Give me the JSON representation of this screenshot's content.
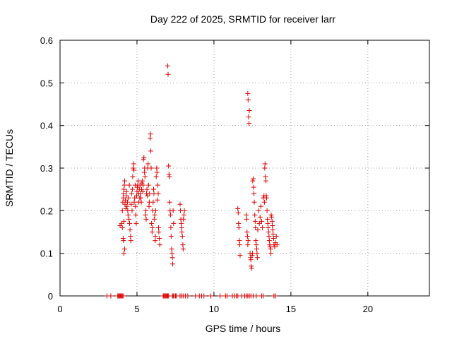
{
  "chart_data": {
    "type": "scatter",
    "title": "Day 222 of 2025, SRMTID for receiver larr",
    "xlabel": "GPS time / hours",
    "ylabel": "SRMTID / TECUs",
    "xlim": [
      0,
      24
    ],
    "ylim": [
      0,
      0.6
    ],
    "xticks": [
      0,
      5,
      10,
      15,
      20
    ],
    "yticks": [
      0,
      0.1,
      0.2,
      0.3,
      0.4,
      0.5,
      0.6
    ],
    "xtick_labels": [
      "0",
      "5",
      "10",
      "15",
      "20"
    ],
    "ytick_labels": [
      "0",
      "0.1",
      "0.2",
      "0.3",
      "0.4",
      "0.5",
      "0.6"
    ],
    "grid": true,
    "marker": "+",
    "color": "#e00000",
    "series": [
      {
        "name": "SRMTID",
        "points": [
          [
            3.05,
            0
          ],
          [
            3.3,
            0
          ],
          [
            3.75,
            0
          ],
          [
            3.8,
            0
          ],
          [
            3.85,
            0
          ],
          [
            3.9,
            0
          ],
          [
            3.95,
            0
          ],
          [
            4.0,
            0
          ],
          [
            4.05,
            0
          ],
          [
            4.1,
            0
          ],
          [
            6.7,
            0
          ],
          [
            6.75,
            0
          ],
          [
            6.8,
            0
          ],
          [
            6.85,
            0
          ],
          [
            6.9,
            0
          ],
          [
            6.95,
            0
          ],
          [
            7.0,
            0
          ],
          [
            7.05,
            0
          ],
          [
            7.3,
            0
          ],
          [
            7.35,
            0
          ],
          [
            7.4,
            0
          ],
          [
            7.5,
            0
          ],
          [
            7.55,
            0
          ],
          [
            7.8,
            0
          ],
          [
            7.9,
            0
          ],
          [
            8.0,
            0
          ],
          [
            8.15,
            0
          ],
          [
            8.3,
            0
          ],
          [
            8.8,
            0
          ],
          [
            9.05,
            0
          ],
          [
            9.2,
            0
          ],
          [
            9.35,
            0
          ],
          [
            9.8,
            0
          ],
          [
            10.4,
            0
          ],
          [
            10.75,
            0
          ],
          [
            10.85,
            0
          ],
          [
            11.2,
            0
          ],
          [
            11.35,
            0
          ],
          [
            11.45,
            0
          ],
          [
            11.55,
            0
          ],
          [
            11.8,
            0
          ],
          [
            12.0,
            0
          ],
          [
            12.1,
            0
          ],
          [
            12.2,
            0
          ],
          [
            12.3,
            0
          ],
          [
            12.4,
            0
          ],
          [
            12.55,
            0
          ],
          [
            12.75,
            0
          ],
          [
            13.1,
            0
          ],
          [
            13.2,
            0
          ],
          [
            13.9,
            0
          ],
          [
            14.0,
            0
          ],
          [
            3.9,
            0.165
          ],
          [
            4.0,
            0.17
          ],
          [
            4.05,
            0.16
          ],
          [
            4.1,
            0.135
          ],
          [
            4.12,
            0.13
          ],
          [
            4.15,
            0.1
          ],
          [
            4.2,
            0.11
          ],
          [
            4.15,
            0.175
          ],
          [
            4.05,
            0.2
          ],
          [
            4.08,
            0.22
          ],
          [
            4.1,
            0.23
          ],
          [
            4.12,
            0.24
          ],
          [
            4.15,
            0.25
          ],
          [
            4.18,
            0.26
          ],
          [
            4.2,
            0.27
          ],
          [
            4.22,
            0.215
          ],
          [
            4.25,
            0.225
          ],
          [
            4.28,
            0.205
          ],
          [
            4.3,
            0.235
          ],
          [
            4.32,
            0.245
          ],
          [
            4.35,
            0.21
          ],
          [
            4.38,
            0.22
          ],
          [
            4.4,
            0.2
          ],
          [
            4.42,
            0.19
          ],
          [
            4.45,
            0.23
          ],
          [
            4.48,
            0.18
          ],
          [
            4.5,
            0.26
          ],
          [
            4.52,
            0.17
          ],
          [
            4.55,
            0.155
          ],
          [
            4.58,
            0.14
          ],
          [
            4.6,
            0.13
          ],
          [
            4.62,
            0.215
          ],
          [
            4.65,
            0.24
          ],
          [
            4.68,
            0.2
          ],
          [
            4.7,
            0.25
          ],
          [
            4.72,
            0.28
          ],
          [
            4.75,
            0.3
          ],
          [
            4.78,
            0.31
          ],
          [
            4.8,
            0.295
          ],
          [
            4.82,
            0.22
          ],
          [
            4.85,
            0.23
          ],
          [
            4.88,
            0.26
          ],
          [
            4.9,
            0.21
          ],
          [
            4.92,
            0.19
          ],
          [
            4.95,
            0.17
          ],
          [
            4.98,
            0.235
          ],
          [
            5.0,
            0.245
          ],
          [
            5.02,
            0.255
          ],
          [
            5.05,
            0.26
          ],
          [
            5.08,
            0.27
          ],
          [
            5.1,
            0.24
          ],
          [
            5.12,
            0.22
          ],
          [
            5.15,
            0.25
          ],
          [
            5.18,
            0.23
          ],
          [
            5.2,
            0.26
          ],
          [
            5.22,
            0.24
          ],
          [
            5.25,
            0.23
          ],
          [
            5.28,
            0.22
          ],
          [
            5.3,
            0.25
          ],
          [
            5.32,
            0.265
          ],
          [
            5.35,
            0.27
          ],
          [
            5.38,
            0.245
          ],
          [
            5.4,
            0.26
          ],
          [
            5.42,
            0.32
          ],
          [
            5.45,
            0.325
          ],
          [
            5.48,
            0.29
          ],
          [
            5.5,
            0.3
          ],
          [
            5.52,
            0.28
          ],
          [
            5.55,
            0.19
          ],
          [
            5.58,
            0.2
          ],
          [
            5.6,
            0.18
          ],
          [
            5.62,
            0.24
          ],
          [
            5.65,
            0.25
          ],
          [
            5.68,
            0.235
          ],
          [
            5.7,
            0.3
          ],
          [
            5.72,
            0.31
          ],
          [
            5.75,
            0.26
          ],
          [
            5.78,
            0.21
          ],
          [
            5.8,
            0.22
          ],
          [
            5.82,
            0.24
          ],
          [
            5.85,
            0.37
          ],
          [
            5.88,
            0.38
          ],
          [
            5.9,
            0.34
          ],
          [
            5.92,
            0.3
          ],
          [
            5.95,
            0.17
          ],
          [
            5.98,
            0.15
          ],
          [
            6.0,
            0.16
          ],
          [
            6.02,
            0.2
          ],
          [
            6.05,
            0.22
          ],
          [
            6.08,
            0.25
          ],
          [
            6.1,
            0.24
          ],
          [
            6.12,
            0.18
          ],
          [
            6.15,
            0.19
          ],
          [
            6.18,
            0.13
          ],
          [
            6.2,
            0.14
          ],
          [
            6.22,
            0.2
          ],
          [
            6.25,
            0.28
          ],
          [
            6.28,
            0.3
          ],
          [
            6.3,
            0.29
          ],
          [
            6.32,
            0.225
          ],
          [
            6.35,
            0.26
          ],
          [
            6.38,
            0.24
          ],
          [
            6.4,
            0.16
          ],
          [
            6.42,
            0.15
          ],
          [
            6.45,
            0.135
          ],
          [
            6.48,
            0.12
          ],
          [
            7.0,
            0.54
          ],
          [
            7.02,
            0.52
          ],
          [
            7.05,
            0.305
          ],
          [
            7.08,
            0.285
          ],
          [
            7.1,
            0.28
          ],
          [
            7.12,
            0.22
          ],
          [
            7.15,
            0.2
          ],
          [
            7.18,
            0.19
          ],
          [
            7.2,
            0.16
          ],
          [
            7.22,
            0.14
          ],
          [
            7.25,
            0.11
          ],
          [
            7.28,
            0.1
          ],
          [
            7.3,
            0.09
          ],
          [
            7.32,
            0.075
          ],
          [
            7.35,
            0.2
          ],
          [
            7.38,
            0.17
          ],
          [
            7.8,
            0.215
          ],
          [
            7.82,
            0.2
          ],
          [
            7.85,
            0.18
          ],
          [
            7.88,
            0.17
          ],
          [
            7.9,
            0.16
          ],
          [
            7.92,
            0.15
          ],
          [
            7.95,
            0.14
          ],
          [
            7.98,
            0.12
          ],
          [
            8.0,
            0.11
          ],
          [
            8.02,
            0.18
          ],
          [
            8.05,
            0.19
          ],
          [
            8.08,
            0.2
          ],
          [
            11.55,
            0.205
          ],
          [
            11.58,
            0.195
          ],
          [
            11.6,
            0.17
          ],
          [
            11.62,
            0.16
          ],
          [
            11.65,
            0.13
          ],
          [
            11.68,
            0.12
          ],
          [
            11.7,
            0.095
          ],
          [
            12.2,
            0.475
          ],
          [
            12.22,
            0.46
          ],
          [
            12.25,
            0.42
          ],
          [
            12.28,
            0.405
          ],
          [
            12.3,
            0.435
          ],
          [
            12.1,
            0.19
          ],
          [
            12.12,
            0.18
          ],
          [
            12.15,
            0.15
          ],
          [
            12.18,
            0.14
          ],
          [
            12.2,
            0.12
          ],
          [
            12.22,
            0.13
          ],
          [
            12.35,
            0.1
          ],
          [
            12.38,
            0.09
          ],
          [
            12.4,
            0.085
          ],
          [
            12.42,
            0.07
          ],
          [
            12.45,
            0.065
          ],
          [
            12.48,
            0.095
          ],
          [
            12.5,
            0.1
          ],
          [
            12.52,
            0.27
          ],
          [
            12.55,
            0.275
          ],
          [
            12.58,
            0.255
          ],
          [
            12.6,
            0.24
          ],
          [
            12.62,
            0.22
          ],
          [
            12.65,
            0.19
          ],
          [
            12.68,
            0.175
          ],
          [
            12.7,
            0.16
          ],
          [
            12.72,
            0.13
          ],
          [
            12.75,
            0.12
          ],
          [
            12.78,
            0.11
          ],
          [
            12.8,
            0.1
          ],
          [
            12.82,
            0.09
          ],
          [
            12.85,
            0.155
          ],
          [
            12.9,
            0.2
          ],
          [
            12.95,
            0.17
          ],
          [
            13.0,
            0.185
          ],
          [
            13.05,
            0.21
          ],
          [
            13.1,
            0.175
          ],
          [
            13.15,
            0.16
          ],
          [
            13.2,
            0.23
          ],
          [
            13.25,
            0.235
          ],
          [
            13.28,
            0.22
          ],
          [
            13.3,
            0.3
          ],
          [
            13.32,
            0.31
          ],
          [
            13.35,
            0.28
          ],
          [
            13.38,
            0.27
          ],
          [
            13.4,
            0.235
          ],
          [
            13.42,
            0.23
          ],
          [
            13.45,
            0.2
          ],
          [
            13.48,
            0.18
          ],
          [
            13.5,
            0.17
          ],
          [
            13.52,
            0.16
          ],
          [
            13.55,
            0.15
          ],
          [
            13.58,
            0.14
          ],
          [
            13.6,
            0.13
          ],
          [
            13.62,
            0.12
          ],
          [
            13.65,
            0.115
          ],
          [
            13.68,
            0.11
          ],
          [
            13.7,
            0.1
          ],
          [
            13.72,
            0.19
          ],
          [
            13.75,
            0.185
          ],
          [
            13.78,
            0.175
          ],
          [
            13.8,
            0.165
          ],
          [
            13.82,
            0.155
          ],
          [
            13.85,
            0.145
          ],
          [
            13.88,
            0.135
          ],
          [
            13.9,
            0.12
          ],
          [
            13.95,
            0.115
          ],
          [
            14.0,
            0.125
          ],
          [
            14.05,
            0.14
          ],
          [
            14.1,
            0.12
          ]
        ]
      }
    ]
  }
}
